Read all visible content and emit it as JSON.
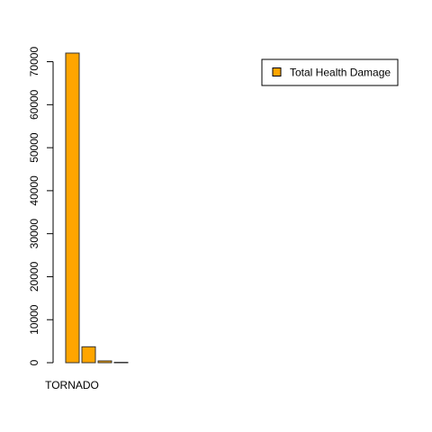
{
  "chart_data": {
    "type": "bar",
    "categories": [
      "TORNADO",
      "",
      "",
      ""
    ],
    "series": [
      {
        "name": "Total Health Damage",
        "values": [
          72000,
          3700,
          420,
          90
        ]
      }
    ],
    "ylim": [
      0,
      72000
    ],
    "yticks": [
      0,
      10000,
      20000,
      30000,
      40000,
      50000,
      60000,
      70000
    ],
    "visible_x_label": "TORNADO",
    "title": "",
    "xlabel": "",
    "ylabel": "",
    "legend_position": "top-right",
    "bar_color": "#FFA500",
    "bar_border_color": "#333333",
    "grid": false
  }
}
